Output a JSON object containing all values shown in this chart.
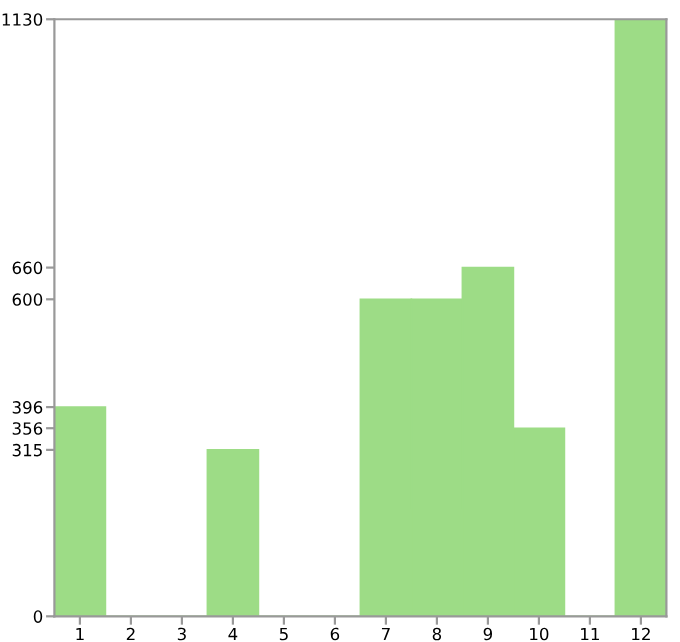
{
  "chart_data": {
    "type": "bar",
    "categories": [
      "1",
      "2",
      "3",
      "4",
      "5",
      "6",
      "7",
      "8",
      "9",
      "10",
      "11",
      "12"
    ],
    "values": [
      396,
      0,
      0,
      315,
      0,
      0,
      600,
      600,
      660,
      356,
      0,
      1130
    ],
    "color": "#9ddc86",
    "ylim": [
      0,
      1130
    ],
    "yticks": [
      0,
      315,
      356,
      396,
      600,
      660,
      1130
    ],
    "grid": false
  }
}
